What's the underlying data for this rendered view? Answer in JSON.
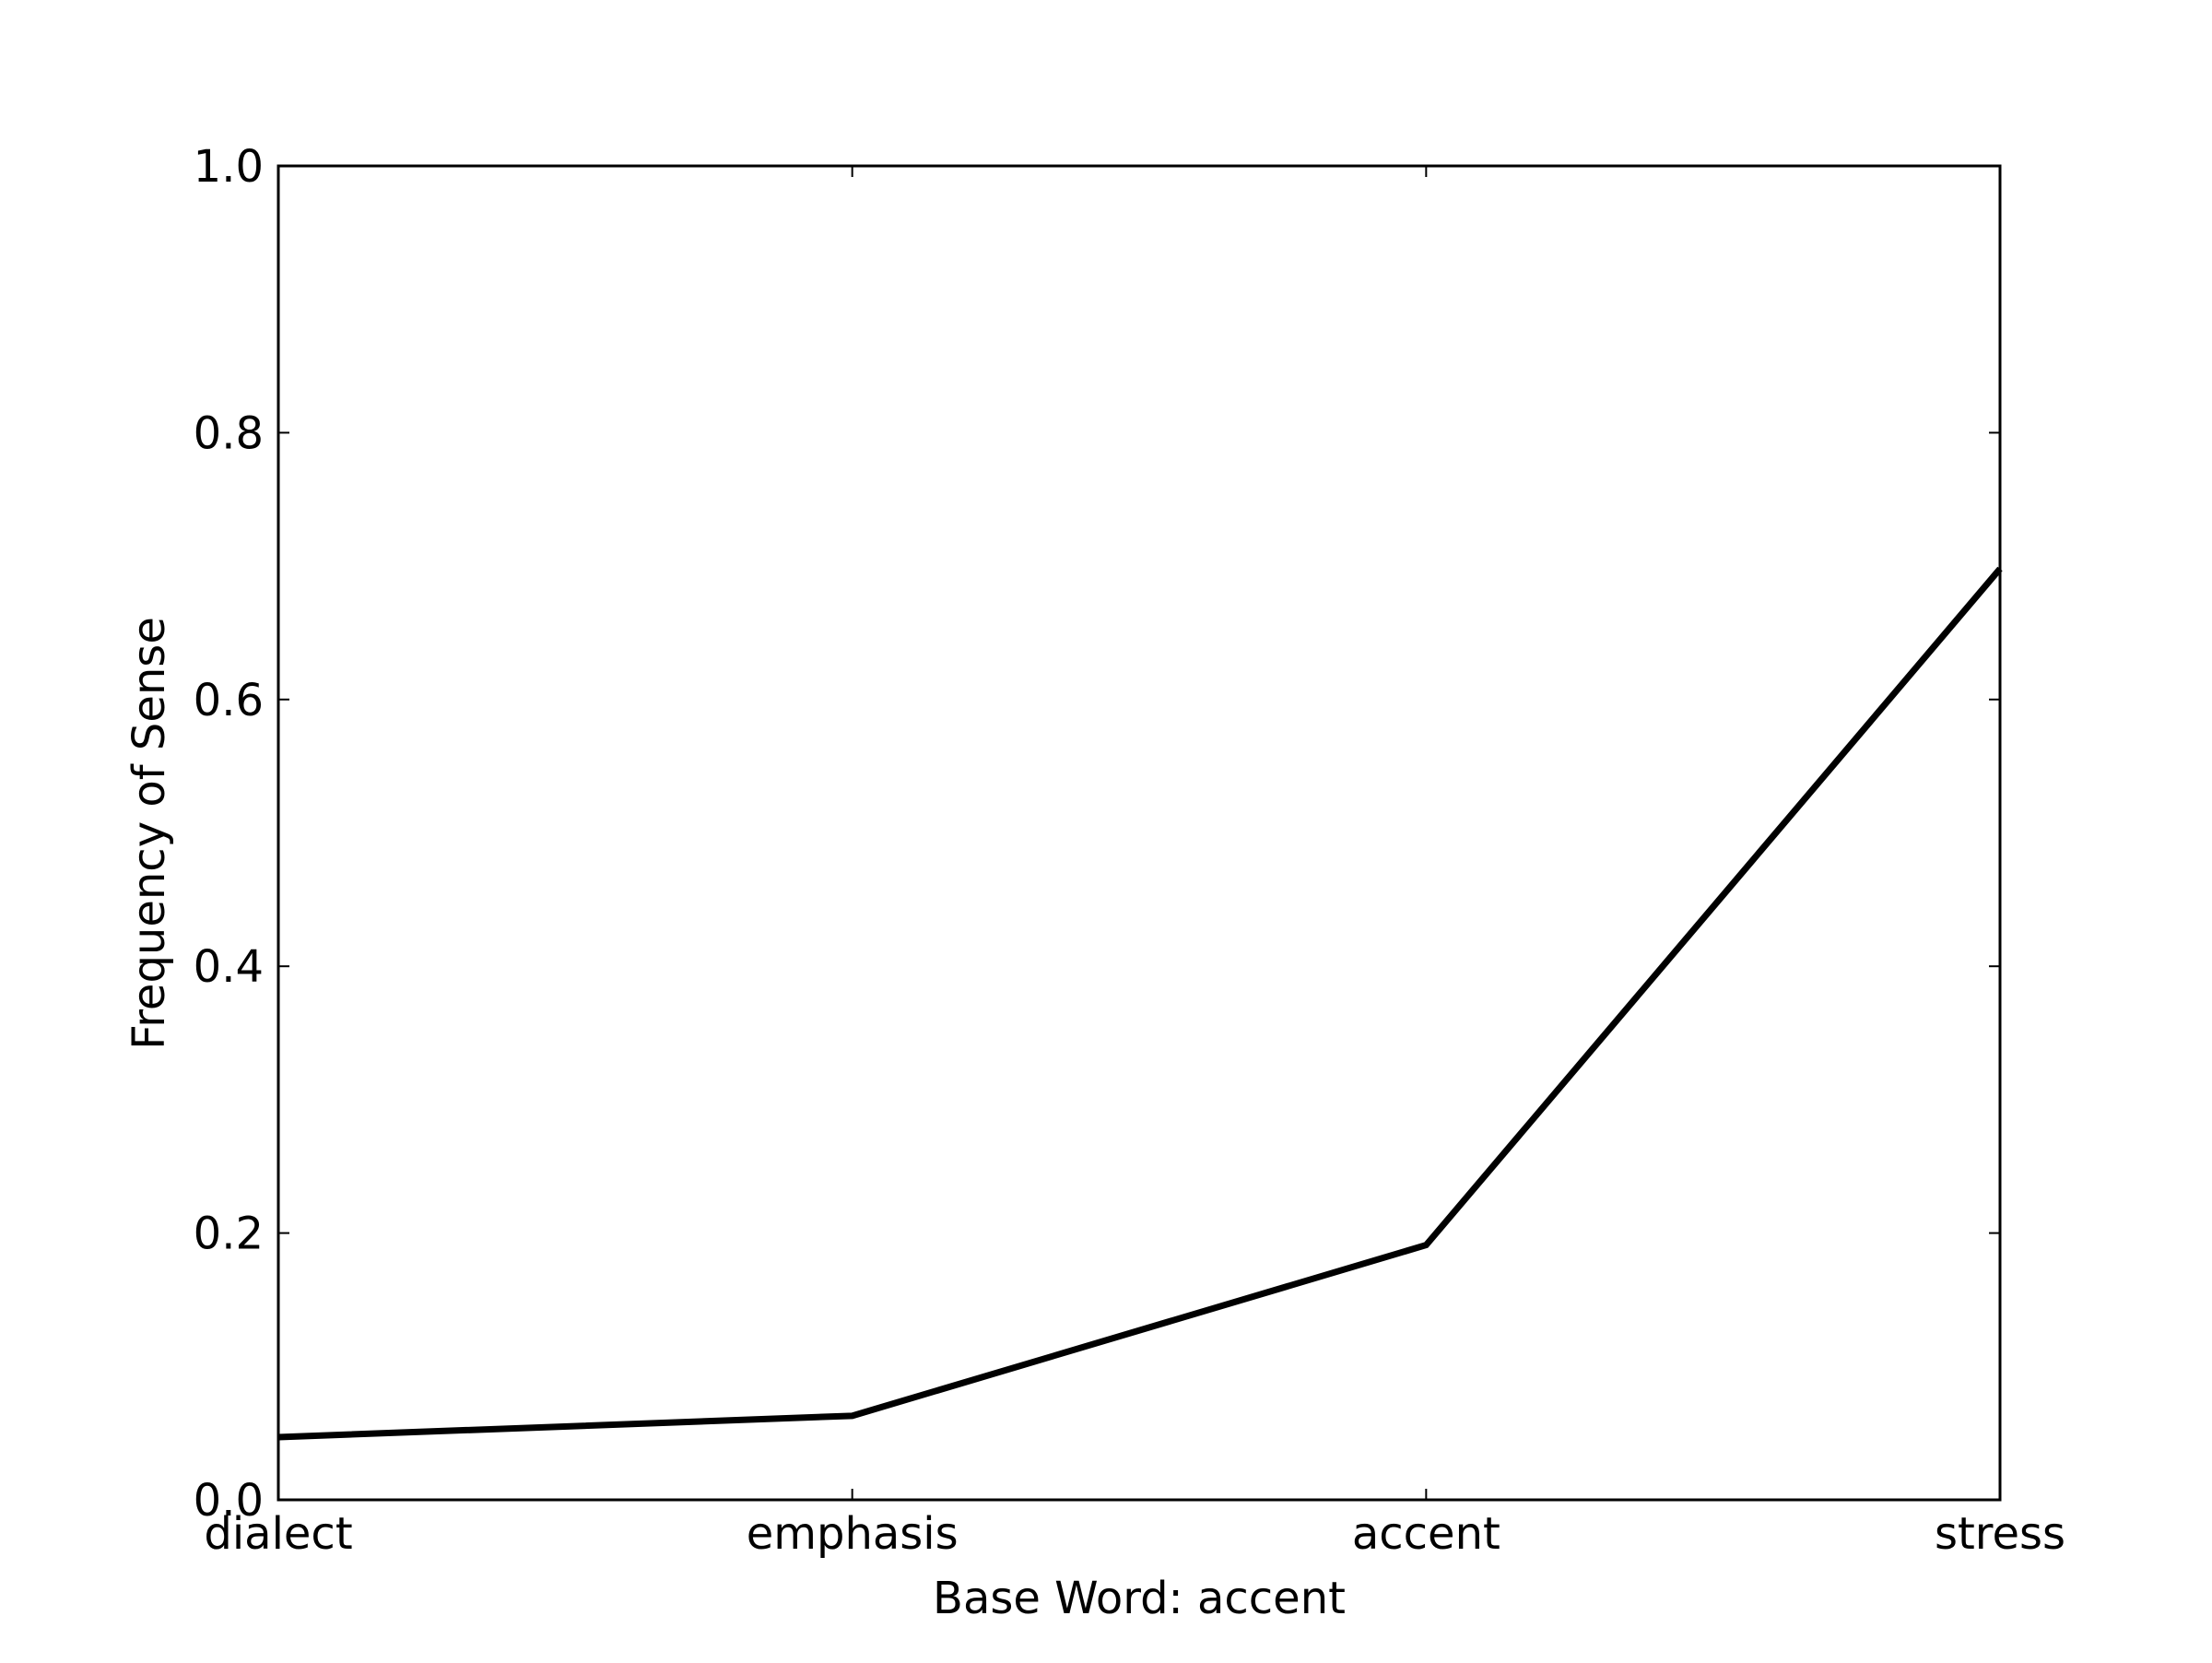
{
  "chart_data": {
    "type": "line",
    "title": "",
    "xlabel": "Base Word: accent",
    "ylabel": "Frequency of Sense",
    "categories": [
      "dialect",
      "emphasis",
      "accent",
      "stress"
    ],
    "series": [
      {
        "values": [
          0.047,
          0.063,
          0.191,
          0.698
        ]
      }
    ],
    "ylim": [
      0.0,
      1.0
    ],
    "yticks": [
      "0.0",
      "0.2",
      "0.4",
      "0.6",
      "0.8",
      "1.0"
    ],
    "grid": false,
    "legend": "none",
    "line_color": "#000000"
  }
}
